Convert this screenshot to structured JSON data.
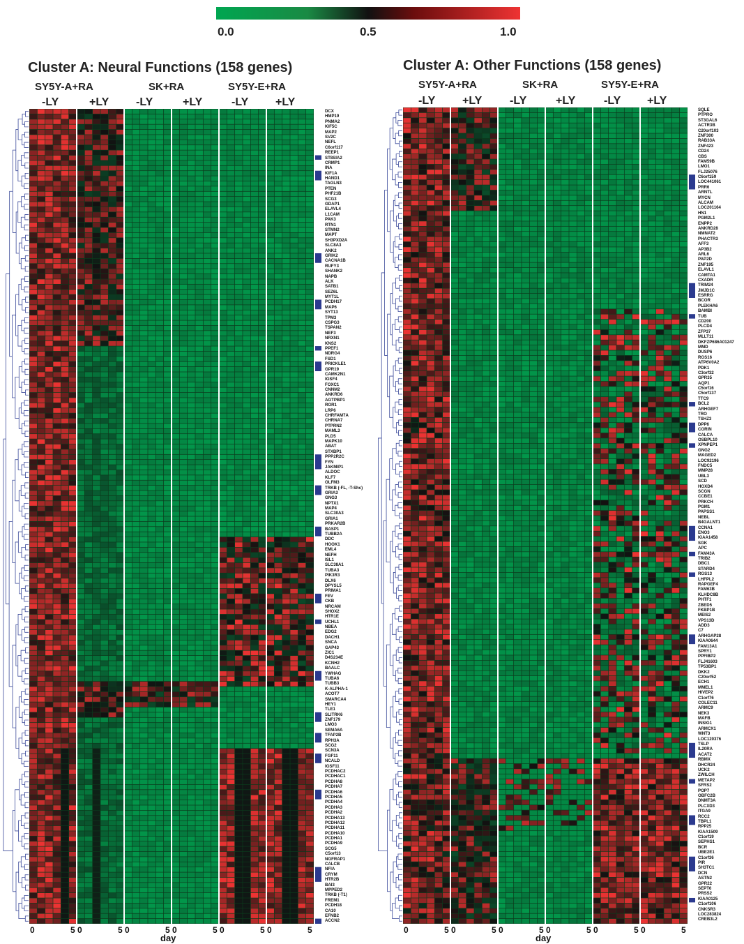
{
  "colorbar": {
    "labels": [
      "0.0",
      "0.5",
      "1.0"
    ],
    "colors": [
      "#00a651",
      "#111111",
      "#ee3333"
    ]
  },
  "chart_data": [
    {
      "type": "heatmap",
      "title": "Cluster A: Neural Functions (158 genes)",
      "groups": [
        "SY5Y-A+RA",
        "SK+RA",
        "SY5Y-E+RA"
      ],
      "subgroups": [
        "-LY",
        "+LY",
        "-LY",
        "+LY",
        "-LY",
        "+LY"
      ],
      "x_ticks": [
        "0",
        "5",
        "0",
        "5",
        "0",
        "5",
        "0",
        "5",
        "0",
        "5",
        "0",
        "5"
      ],
      "xlabel": "day",
      "genes": [
        "DCX",
        "HMP19",
        "PNMA2",
        "KIF5C",
        "MAP2",
        "SV2C",
        "NEFL",
        "C6orf117",
        "REEP1",
        "ST8SIA2",
        "CRMP1",
        "INA",
        "KIF1A",
        "HAND1",
        "TAGLN3",
        "PTEN",
        "PHF21B",
        "SCG3",
        "GDAP1",
        "ELAVL4",
        "L1CAM",
        "PAK3",
        "RTN1",
        "STMN2",
        "MAPT",
        "SH3PXD2A",
        "SLC8A3",
        "ANK2",
        "GRIK2",
        "CACNA1B",
        "RUFY3",
        "SHANK2",
        "NAPB",
        "ALK",
        "SATB1",
        "SEZ6L",
        "MYT1L",
        "PCDH17",
        "MAP6",
        "SYT13",
        "TPM3",
        "CSPG3",
        "TSPAN2",
        "NEF3",
        "NRXN1",
        "KNS2",
        "PPEF1",
        "NDRG4",
        "FSD1",
        "PRICKLE1",
        "GPR19",
        "CAMK2N1",
        "IGSF4",
        "FOXC1",
        "CNNM2",
        "ANKRD6",
        "AGTPBP1",
        "ROR1",
        "LRP6",
        "CHRFAM7A",
        "CHRNA7",
        "PTPRN2",
        "MAML3",
        "PLD5",
        "MAPK10",
        "ABAT",
        "STXBP1",
        "PPP2R2C",
        "FYN",
        "JAKMIP1",
        "ALDOC",
        "KLF7",
        "OLFM3",
        "TRKB (-FL, -T-Shc)",
        "GRIA3",
        "GNG3",
        "NPTX1",
        "MAP4",
        "SLC30A3",
        "GRIA1",
        "PRKAR2B",
        "BASP1",
        "TUBB2A",
        "DDC",
        "HOOK1",
        "EML4",
        "NEFH",
        "ISL1",
        "SLC38A1",
        "TUBA3",
        "PIK3R3",
        "DLX6",
        "DPYSL5",
        "PRIMA1",
        "FEV",
        "CKB",
        "NRCAM",
        "SHOX2",
        "HTR1E",
        "UCHL1",
        "NBEA",
        "EDG2",
        "DACH1",
        "SNCA",
        "GAP43",
        "ZIC1",
        "D4S234E",
        "KCNH2",
        "BAALC",
        "YWHAG",
        "TUBA6",
        "TUBB3",
        "K-ALPHA-1",
        "ACOT7",
        "SMARCA4",
        "HEY1",
        "TLE1",
        "SLITRK6",
        "ZNF179",
        "LMO3",
        "SEMA6A",
        "TFAP2B",
        "RPH3A",
        "SCG2",
        "SCN3A",
        "FGF11",
        "NCALD",
        "IGSF11",
        "PCDHAC2",
        "PCDHAC1",
        "PCDHA8",
        "PCDHA7",
        "PCDHA6",
        "PCDHA5",
        "PCDHA4",
        "PCDHA3",
        "PCDHA2",
        "PCDHA13",
        "PCDHA12",
        "PCDHA11",
        "PCDHA10",
        "PCDHA1",
        "PCDHA9",
        "SCG5",
        "C5orf13",
        "NGFRAP1",
        "CALCB",
        "NFIA",
        "CRYM",
        "HTR2B",
        "BAI3",
        "MPPED2",
        "TRKB (-T1)",
        "FREM1",
        "PCDH18",
        "CA10",
        "EFNB2",
        "ACCN2"
      ]
    },
    {
      "type": "heatmap",
      "title": "Cluster A: Other Functions (158 genes)",
      "groups": [
        "SY5Y-A+RA",
        "SK+RA",
        "SY5Y-E+RA"
      ],
      "subgroups": [
        "-LY",
        "+LY",
        "-LY",
        "+LY",
        "-LY",
        "+LY"
      ],
      "x_ticks": [
        "0",
        "5",
        "0",
        "5",
        "0",
        "5",
        "0",
        "5",
        "0",
        "5",
        "0",
        "5"
      ],
      "xlabel": "day",
      "genes": [
        "SQLE",
        "PTPRO",
        "ST3GAL6",
        "ACTR3B",
        "C20orf103",
        "ZNF300",
        "RAB33A",
        "ZNF423",
        "CD24",
        "CBS",
        "FAM59B",
        "LMO1",
        "FLJ25076",
        "C6orf159",
        "LOC441061",
        "PRR6",
        "ARNTL",
        "MYCN",
        "ALCAM",
        "LOC201164",
        "HN1",
        "PGM2L1",
        "ENPP2",
        "ANKRD28",
        "NMNAT2",
        "PHACTR3",
        "AFF3",
        "AP3B2",
        "ARL6",
        "PAP2D",
        "ZNF195",
        "ELAVL1",
        "CAMTA1",
        "CXADR",
        "TRIM24",
        "JMJD1C",
        "ESRRG",
        "BCOR",
        "PLEKHA6",
        "BAMBI",
        "TUB",
        "CD200",
        "PLCD4",
        "ZFP37",
        "MLLT11",
        "DKFZP686A01247",
        "MMD",
        "DUSP6",
        "RGS16",
        "ATP6V0A2",
        "PDK1",
        "C3orf32",
        "GPR35",
        "AQP1",
        "C5orf16",
        "C5orf137",
        "TTC9",
        "BCL2",
        "ARHGEF7",
        "TRO",
        "TSHZ3",
        "DPP6",
        "CORIN",
        "CALCA",
        "OSBPL10",
        "XPNPEP1",
        "GNG2",
        "MAGED2",
        "LOC92196",
        "FNDC5",
        "MMP28",
        "UBL3",
        "SCD",
        "HOXD4",
        "SCGN",
        "CCBE1",
        "PRKCH",
        "PGM1",
        "PAPSS1",
        "NEBL",
        "B4GALNT1",
        "CCNA1",
        "ENO3",
        "KIAA1458",
        "SGK",
        "APC",
        "FAM43A",
        "TRIB2",
        "DBC1",
        "STARD4",
        "RGS13",
        "LHFPL2",
        "RAPGEF4",
        "FAM63B",
        "KLHDC8B",
        "PHTF1",
        "ZBED5",
        "FKBP1B",
        "MEIS2",
        "VPS13D",
        "ADD3",
        "C7",
        "ARHGAP28",
        "KIAA0644",
        "FAM13A1",
        "SPRY1",
        "PPFIBP2",
        "FLJ41603",
        "TP53BP1",
        "DKK2",
        "C20orf52",
        "ECH1",
        "MMEL1",
        "HIVEP2",
        "C1orf76",
        "COLEC11",
        "ARMC9",
        "NEK3",
        "MAFB",
        "INSIG1",
        "ARMCX1",
        "WNT3",
        "LOC120376",
        "TSLP",
        "IL20RA",
        "ACAT2",
        "RBMX",
        "DHCR24",
        "UCK2",
        "ZWILCH",
        "METAP2",
        "SFRS2",
        "POP7",
        "OBFC2B",
        "DNMT3A",
        "PLCXD3",
        "ITGA9",
        "RCC2",
        "TBPL1",
        "RPP25",
        "KIAA1509",
        "C1orf19",
        "SEPHS1",
        "BCR",
        "UBE2E1",
        "C1orf36",
        "PIR",
        "SH3TC1",
        "DCN",
        "ASTN2",
        "GPR22",
        "SEPT6",
        "PRSS2",
        "KIAA0125",
        "C1orf106",
        "CNKSR3",
        "LOC283824",
        "CREB3L2"
      ]
    }
  ]
}
